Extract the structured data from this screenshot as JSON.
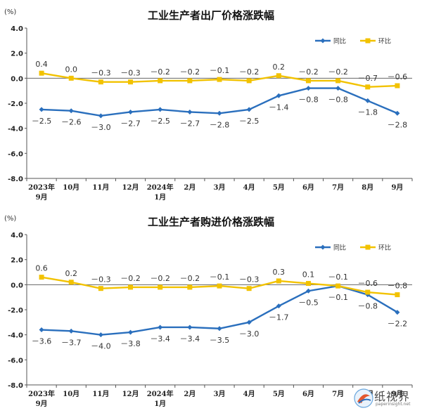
{
  "chart_data": [
    {
      "type": "line",
      "title": "工业生产者出厂价格涨跌幅",
      "unit": "(%)",
      "categories": [
        [
          "2023年",
          "9月"
        ],
        [
          "10月"
        ],
        [
          "11月"
        ],
        [
          "12月"
        ],
        [
          "2024年",
          "1月"
        ],
        [
          "2月"
        ],
        [
          "3月"
        ],
        [
          "4月"
        ],
        [
          "5月"
        ],
        [
          "6月"
        ],
        [
          "7月"
        ],
        [
          "8月"
        ],
        [
          "9月"
        ]
      ],
      "ylim": [
        -8.0,
        4.0
      ],
      "yticks": [
        "4.0",
        "2.0",
        "0.0",
        "-2.0",
        "-4.0",
        "-6.0",
        "-8.0"
      ],
      "legend_position": "top-right",
      "series": [
        {
          "name": "同比",
          "color": "#2a6fbd",
          "values": [
            -2.5,
            -2.6,
            -3.0,
            -2.7,
            -2.5,
            -2.7,
            -2.8,
            -2.5,
            -1.4,
            -0.8,
            -0.8,
            -1.8,
            -2.8
          ],
          "labels": [
            "－2.5",
            "－2.6",
            "－3.0",
            "－2.7",
            "－2.5",
            "－2.7",
            "－2.8",
            "－2.5",
            "－1.4",
            "－0.8",
            "－0.8",
            "－1.8",
            "－2.8"
          ]
        },
        {
          "name": "环比",
          "color": "#f2c200",
          "values": [
            0.4,
            0.0,
            -0.3,
            -0.3,
            -0.2,
            -0.2,
            -0.1,
            -0.2,
            0.2,
            -0.2,
            -0.2,
            -0.7,
            -0.6
          ],
          "labels": [
            "0.4",
            "0.0",
            "－0.3",
            "－0.3",
            "－0.2",
            "－0.2",
            "－0.1",
            "－0.2",
            "0.2",
            "－0.2",
            "－0.2",
            "－0.7",
            "－0.6"
          ]
        }
      ]
    },
    {
      "type": "line",
      "title": "工业生产者购进价格涨跌幅",
      "unit": "(%)",
      "categories": [
        [
          "2023年",
          "9月"
        ],
        [
          "10月"
        ],
        [
          "11月"
        ],
        [
          "12月"
        ],
        [
          "2024年",
          "1月"
        ],
        [
          "2月"
        ],
        [
          "3月"
        ],
        [
          "4月"
        ],
        [
          "5月"
        ],
        [
          "6月"
        ],
        [
          "7月"
        ],
        [
          "8月"
        ],
        [
          "9月"
        ]
      ],
      "ylim": [
        -8.0,
        4.0
      ],
      "yticks": [
        "4.0",
        "2.0",
        "0.0",
        "-2.0",
        "-4.0",
        "-6.0",
        "-8.0"
      ],
      "legend_position": "top-right",
      "series": [
        {
          "name": "同比",
          "color": "#2a6fbd",
          "values": [
            -3.6,
            -3.7,
            -4.0,
            -3.8,
            -3.4,
            -3.4,
            -3.5,
            -3.0,
            -1.7,
            -0.5,
            -0.1,
            -0.8,
            -2.2
          ],
          "labels": [
            "－3.6",
            "－3.7",
            "－4.0",
            "－3.8",
            "－3.4",
            "－3.4",
            "－3.5",
            "－3.0",
            "－1.7",
            "－0.5",
            "－0.1",
            "－0.8",
            "－2.2"
          ]
        },
        {
          "name": "环比",
          "color": "#f2c200",
          "values": [
            0.6,
            0.2,
            -0.3,
            -0.2,
            -0.2,
            -0.2,
            -0.1,
            -0.3,
            0.3,
            0.1,
            -0.1,
            -0.6,
            -0.8
          ],
          "labels": [
            "0.6",
            "0.2",
            "－0.3",
            "－0.2",
            "－0.2",
            "－0.2",
            "－0.1",
            "－0.3",
            "0.3",
            "0.1",
            "－0.1",
            "－0.6",
            "－0.8"
          ]
        }
      ]
    }
  ],
  "watermark": {
    "text": "纸视界",
    "url": "paperinsight.net"
  }
}
